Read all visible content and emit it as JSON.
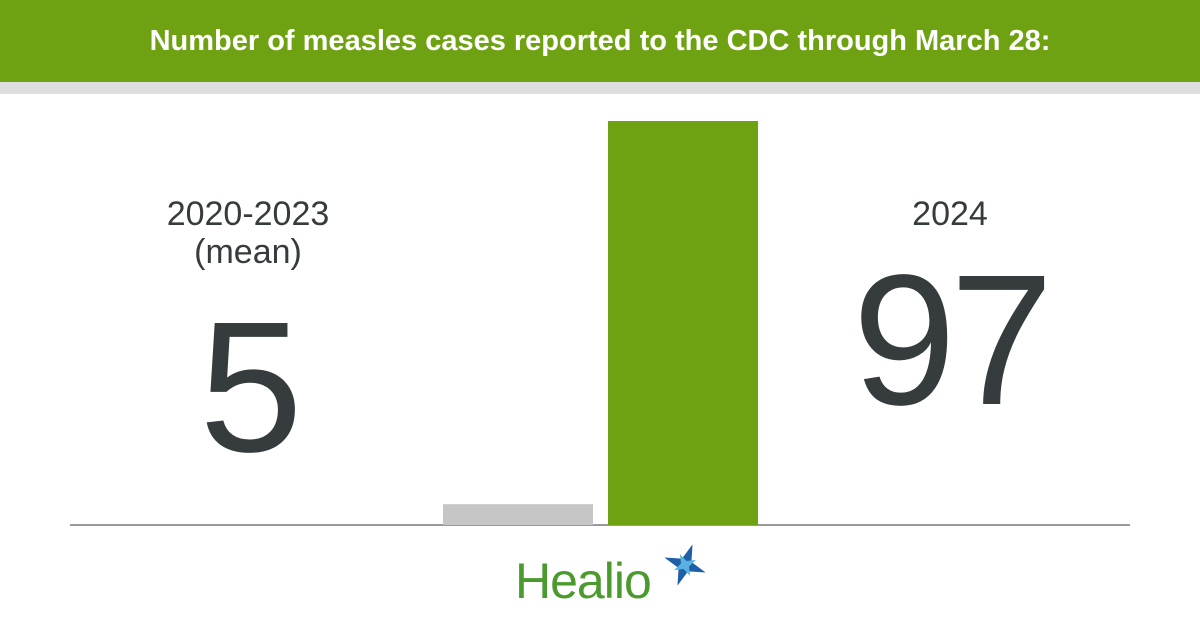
{
  "chart_data": {
    "type": "bar",
    "title": "Number of measles cases reported to the CDC through March 28:",
    "categories": [
      "2020-2023 (mean)",
      "2024"
    ],
    "values": [
      5,
      97
    ],
    "colors": [
      "#c6c6c6",
      "#6fa212"
    ]
  },
  "brand": "Healio"
}
